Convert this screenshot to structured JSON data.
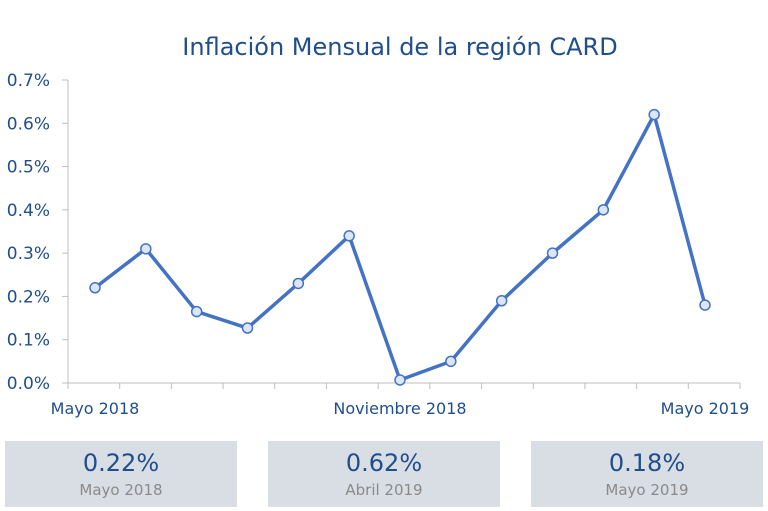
{
  "chart_data": {
    "type": "line",
    "title": "Inflación Mensual de la región CARD",
    "ylabel": "",
    "xlabel": "",
    "ylim": [
      0,
      0.7
    ],
    "y_ticks": [
      "0.0%",
      "0.1%",
      "0.2%",
      "0.3%",
      "0.4%",
      "0.5%",
      "0.6%",
      "0.7%"
    ],
    "x_tick_labels": [
      "Mayo 2018",
      "Noviembre 2018",
      "Mayo 2019"
    ],
    "x_tick_index": [
      0,
      6,
      12
    ],
    "grid": false,
    "series": [
      {
        "values": [
          0.22,
          0.31,
          0.165,
          0.127,
          0.23,
          0.34,
          0.007,
          0.05,
          0.19,
          0.3,
          0.4,
          0.62,
          0.18
        ],
        "color": "#4472c4",
        "marker_fill": "#dce6f7"
      }
    ]
  },
  "cards": [
    {
      "value": "0.22%",
      "label": "Mayo 2018"
    },
    {
      "value": "0.62%",
      "label": "Abril 2019"
    },
    {
      "value": "0.18%",
      "label": "Mayo 2019"
    }
  ]
}
